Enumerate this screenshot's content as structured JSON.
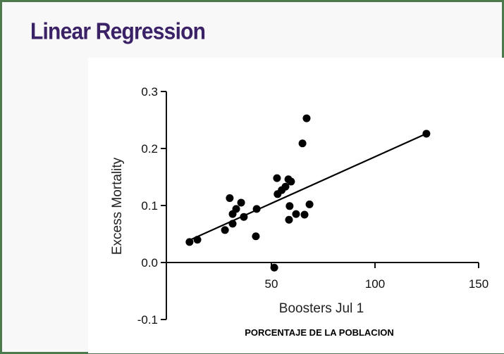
{
  "header": {
    "title": "Linear Regression"
  },
  "footer_label": "PORCENTAJE DE LA POBLACION",
  "chart_data": {
    "type": "scatter",
    "title": "Linear Regression",
    "xlabel": "Boosters Jul 1",
    "ylabel": "Excess Mortality",
    "xlim": [
      0,
      150
    ],
    "ylim": [
      -0.1,
      0.3
    ],
    "xticks": [
      50,
      100,
      150
    ],
    "yticks": [
      -0.1,
      0.0,
      0.1,
      0.2,
      0.3
    ],
    "xtick_labels": [
      "50",
      "100",
      "150"
    ],
    "ytick_labels": [
      "-0.1",
      "0.0",
      "0.1",
      "0.2",
      "0.3"
    ],
    "grid": false,
    "points": [
      [
        10.5,
        0.036
      ],
      [
        14.3,
        0.04
      ],
      [
        27.6,
        0.057
      ],
      [
        29.9,
        0.113
      ],
      [
        31.3,
        0.085
      ],
      [
        31.3,
        0.068
      ],
      [
        33.0,
        0.094
      ],
      [
        35.4,
        0.105
      ],
      [
        36.7,
        0.08
      ],
      [
        42.9,
        0.094
      ],
      [
        42.5,
        0.046
      ],
      [
        51.4,
        -0.009
      ],
      [
        52.7,
        0.148
      ],
      [
        53.0,
        0.12
      ],
      [
        55.0,
        0.127
      ],
      [
        56.8,
        0.133
      ],
      [
        58.2,
        0.146
      ],
      [
        59.5,
        0.142
      ],
      [
        58.5,
        0.075
      ],
      [
        58.8,
        0.099
      ],
      [
        61.9,
        0.085
      ],
      [
        66.0,
        0.084
      ],
      [
        68.4,
        0.102
      ],
      [
        65.0,
        0.209
      ],
      [
        67.0,
        0.253
      ],
      [
        124.8,
        0.226
      ]
    ],
    "regression": {
      "slope": 0.001635,
      "intercept": 0.022,
      "x_range": [
        9.2,
        124.8
      ]
    },
    "colors": {
      "points": "#000000",
      "line": "#000000",
      "title": "#3b2266",
      "border": "#4d7a4d"
    }
  }
}
